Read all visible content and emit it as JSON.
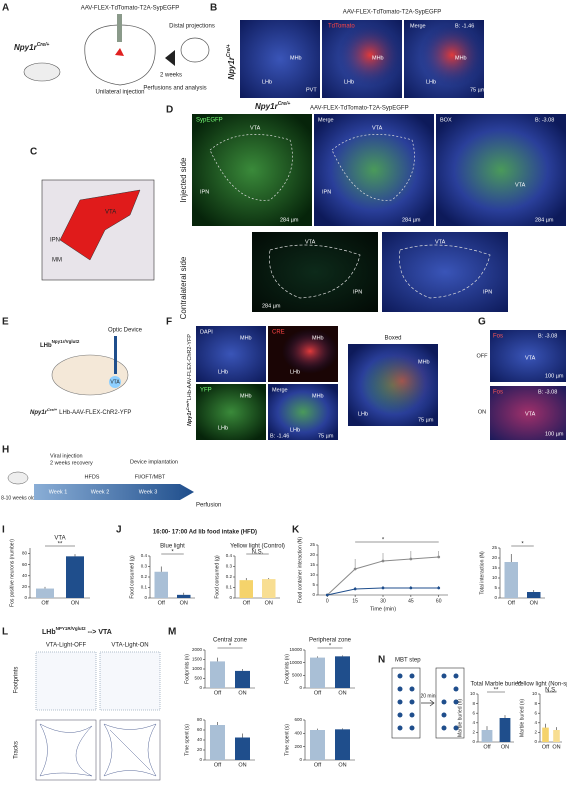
{
  "panels": {
    "A": {
      "letter": "A",
      "mouse": "Npy1r",
      "mouse_sup": "Cre/+",
      "virus": "AAV-FLEX-TdTomato-T2A-SypEGFP",
      "distal": "Distal projections",
      "weeks": "2 weeks",
      "injection": "Unilateral injection",
      "analysis": "Perfusions and analysis"
    },
    "B": {
      "letter": "B",
      "virus": "AAV-FLEX-TdTomato-T2A-SypEGFP",
      "mouse": "Npy1r",
      "mouse_sup": "Cre/+",
      "tdtomato": "TdTomato",
      "merge": "Merge",
      "mhb": "MHb",
      "lhb": "LHb",
      "pvt": "PVT",
      "bregma": "B: -1.46",
      "scale": "75 µm"
    },
    "C": {
      "letter": "C",
      "vta": "VTA",
      "ipn": "IPN",
      "mm": "MM"
    },
    "D": {
      "letter": "D",
      "mouse": "Npy1r",
      "mouse_sup": "Cre/+",
      "virus": "AAV-FLEX-TdTomato-T2A-SypEGFP",
      "syp": "SypEGFP",
      "merge": "Merge",
      "box": "BOX",
      "bregma": "B: -3.08",
      "vta": "VTA",
      "ipn": "IPN",
      "scale": "284 µm",
      "injected": "Injected side",
      "contralateral": "Contralateral side"
    },
    "E": {
      "letter": "E",
      "lhb": "LHb",
      "lhb_sup": "Npy1r/Vglut2",
      "optic": "Optic Device",
      "vta": "VTA",
      "mouse": "Npy1r",
      "mouse_sup": "Cre/+",
      "virus": "LHb-AAV-FLEX-ChR2-YFP"
    },
    "F": {
      "letter": "F",
      "dapi": "DAPI",
      "cre": "CRE",
      "yfp": "YFP",
      "merge": "Merge",
      "mhb": "MHb",
      "lhb": "LHb",
      "bregma": "B: -1.46",
      "scale": "75 µm",
      "boxed": "Boxed",
      "mouse": "Npy1r",
      "mouse_sup": "Cre/+",
      "virus": "LHb-AAV-FLEX-ChR2-YFP"
    },
    "G": {
      "letter": "G",
      "fos": "Fos",
      "off": "OFF",
      "on": "ON",
      "vta": "VTA",
      "bregma": "B: -3.08",
      "scale": "100 µm"
    },
    "H": {
      "letter": "H",
      "viral": "Viral injection",
      "recovery": "2 weeks recovery",
      "device": "Device implantation",
      "age": "8-10 weeks old",
      "hfds": "HFDS",
      "tests": "FI/OFT/MBT",
      "week1": "Week 1",
      "week2": "Week 2",
      "week3": "Week 3",
      "perfusion": "Perfusion"
    },
    "I": {
      "letter": "I"
    },
    "J": {
      "letter": "J",
      "title": "16:00- 17:00 Ad lib food intake (HFD)"
    },
    "K": {
      "letter": "K"
    },
    "L": {
      "letter": "L",
      "title": "LHb",
      "title_sup": "NPY1R/Vglut2",
      "arrow": "--> VTA",
      "off": "VTA-Light-OFF",
      "on": "VTA-Light-ON",
      "footprints": "Footprints",
      "tracks": "Tracks"
    },
    "M": {
      "letter": "M"
    },
    "N": {
      "letter": "N",
      "step": "MBT step",
      "time": "20 min"
    }
  },
  "chart_data": [
    {
      "type": "bar",
      "title": "VTA",
      "ylabel": "Fos positive neurons (number)",
      "categories": [
        "Off",
        "ON"
      ],
      "values": [
        17,
        75
      ],
      "errors": [
        3,
        4
      ],
      "colors": [
        "#a9bfd6",
        "#1f4e8c"
      ],
      "ylim": [
        0,
        90
      ],
      "yticks": [
        0,
        20,
        40,
        60,
        80
      ],
      "annotation": "**"
    },
    {
      "type": "bar",
      "title": "Blue light",
      "ylabel": "Food consumed (g)",
      "categories": [
        "Off",
        "ON"
      ],
      "values": [
        0.25,
        0.03
      ],
      "errors": [
        0.05,
        0.02
      ],
      "colors": [
        "#a9bfd6",
        "#1f4e8c"
      ],
      "ylim": [
        0,
        0.4
      ],
      "yticks": [
        0,
        0.1,
        0.2,
        0.3,
        0.4
      ],
      "annotation": "*"
    },
    {
      "type": "bar",
      "title": "Yellow light (Control)",
      "ylabel": "Food consumed (g)",
      "categories": [
        "Off",
        "ON"
      ],
      "values": [
        0.17,
        0.18
      ],
      "errors": [
        0.02,
        0.01
      ],
      "colors": [
        "#f5d36b",
        "#f8de92"
      ],
      "ylim": [
        0,
        0.4
      ],
      "yticks": [
        0,
        0.1,
        0.2,
        0.3,
        0.4
      ],
      "annotation": "N.S."
    },
    {
      "type": "line",
      "xlabel": "Time (min)",
      "ylabel": "Food container interaction (N)",
      "x": [
        0,
        15,
        30,
        45,
        60
      ],
      "xlim": [
        -5,
        65
      ],
      "xticks": [
        0,
        15,
        30,
        45,
        60
      ],
      "ylim": [
        0,
        25
      ],
      "yticks": [
        0,
        5,
        10,
        15,
        20,
        25
      ],
      "series": [
        {
          "name": "Off",
          "color": "#8a8a8a",
          "values": [
            0,
            13,
            17,
            18,
            19
          ],
          "errors": [
            0,
            5,
            4,
            4,
            3
          ]
        },
        {
          "name": "ON",
          "color": "#1f4e8c",
          "values": [
            0,
            3,
            3.5,
            3.5,
            3.5
          ],
          "errors": [
            0,
            1,
            1,
            1,
            1
          ]
        }
      ],
      "annotation": "*"
    },
    {
      "type": "bar",
      "ylabel": "Total interaction (N)",
      "categories": [
        "Off",
        "ON"
      ],
      "values": [
        18,
        3
      ],
      "errors": [
        4,
        1
      ],
      "colors": [
        "#a9bfd6",
        "#1f4e8c"
      ],
      "ylim": [
        0,
        25
      ],
      "yticks": [
        0,
        5,
        10,
        15,
        20,
        25
      ],
      "annotation": "*"
    },
    {
      "type": "bar",
      "title": "Central zone",
      "ylabel": "Footprints (n)",
      "categories": [
        "Off",
        "ON"
      ],
      "values": [
        1400,
        900
      ],
      "errors": [
        200,
        100
      ],
      "colors": [
        "#a9bfd6",
        "#1f4e8c"
      ],
      "ylim": [
        0,
        2000
      ],
      "yticks": [
        0,
        500,
        1000,
        1500,
        2000
      ],
      "annotation": "*"
    },
    {
      "type": "bar",
      "title": "Peripheral zone",
      "ylabel": "Footprints (n)",
      "categories": [
        "Off",
        "ON"
      ],
      "values": [
        12000,
        12500
      ],
      "errors": [
        500,
        400
      ],
      "colors": [
        "#a9bfd6",
        "#1f4e8c"
      ],
      "ylim": [
        0,
        15000
      ],
      "yticks": [
        0,
        5000,
        10000,
        15000
      ],
      "annotation": "*"
    },
    {
      "type": "bar",
      "ylabel": "Time spent (s)",
      "categories": [
        "Off",
        "ON"
      ],
      "values": [
        70,
        45
      ],
      "errors": [
        6,
        8
      ],
      "colors": [
        "#a9bfd6",
        "#1f4e8c"
      ],
      "ylim": [
        0,
        80
      ],
      "yticks": [
        0,
        20,
        40,
        60,
        80
      ]
    },
    {
      "type": "bar",
      "ylabel": "Time spent (s)",
      "categories": [
        "Off",
        "ON"
      ],
      "values": [
        450,
        460
      ],
      "errors": [
        20,
        15
      ],
      "colors": [
        "#a9bfd6",
        "#1f4e8c"
      ],
      "ylim": [
        0,
        600
      ],
      "yticks": [
        0,
        200,
        400,
        600
      ]
    },
    {
      "type": "bar",
      "title": "Total Marble buried",
      "ylabel": "Marble buried (n)",
      "categories": [
        "Off",
        "ON"
      ],
      "values": [
        2.5,
        5
      ],
      "errors": [
        0.8,
        0.6
      ],
      "colors": [
        "#a9bfd6",
        "#1f4e8c"
      ],
      "ylim": [
        0,
        10
      ],
      "yticks": [
        0,
        2,
        4,
        6,
        8,
        10
      ],
      "annotation": "**"
    },
    {
      "type": "bar",
      "title": "Yellow light (Non-specific)",
      "ylabel": "Marble buried (n)",
      "categories": [
        "Off",
        "ON"
      ],
      "values": [
        3,
        2.5
      ],
      "errors": [
        0.8,
        0.6
      ],
      "colors": [
        "#f5d36b",
        "#f8de92"
      ],
      "ylim": [
        0,
        10
      ],
      "yticks": [
        0,
        2,
        4,
        6,
        8,
        10
      ],
      "annotation": "N.S."
    }
  ]
}
